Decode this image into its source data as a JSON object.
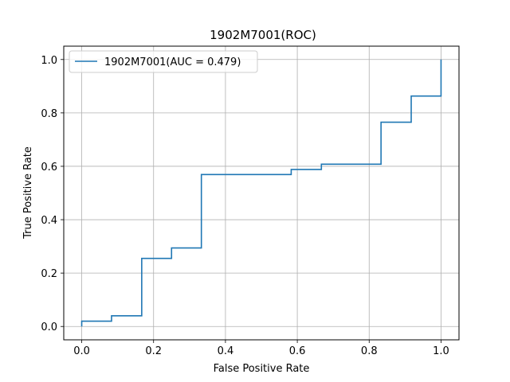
{
  "chart_data": {
    "type": "line",
    "title": "1902M7001(ROC)",
    "xlabel": "False Positive Rate",
    "ylabel": "True Positive Rate",
    "xlim": [
      -0.05,
      1.05
    ],
    "ylim": [
      -0.05,
      1.05
    ],
    "xticks": [
      0.0,
      0.2,
      0.4,
      0.6,
      0.8,
      1.0
    ],
    "yticks": [
      0.0,
      0.2,
      0.4,
      0.6,
      0.8,
      1.0
    ],
    "xtick_labels": [
      "0.0",
      "0.2",
      "0.4",
      "0.6",
      "0.8",
      "1.0"
    ],
    "ytick_labels": [
      "0.0",
      "0.2",
      "0.4",
      "0.6",
      "0.8",
      "1.0"
    ],
    "grid": true,
    "legend_position": "upper left",
    "series": [
      {
        "name": "1902M7001(AUC = 0.479)",
        "color": "#1f77b4",
        "drawstyle": "steps",
        "x": [
          0.0,
          0.0,
          0.083,
          0.083,
          0.167,
          0.167,
          0.25,
          0.25,
          0.333,
          0.333,
          0.583,
          0.583,
          0.667,
          0.667,
          0.833,
          0.833,
          0.917,
          0.917,
          1.0,
          1.0
        ],
        "y": [
          0.0,
          0.02,
          0.02,
          0.04,
          0.04,
          0.255,
          0.255,
          0.294,
          0.294,
          0.569,
          0.569,
          0.588,
          0.588,
          0.608,
          0.608,
          0.765,
          0.765,
          0.863,
          0.863,
          1.0
        ]
      }
    ]
  }
}
